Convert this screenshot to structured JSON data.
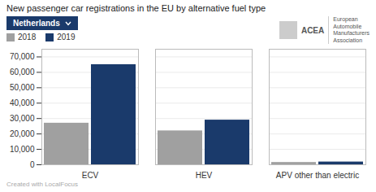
{
  "chart_data": {
    "type": "bar",
    "title": "New passenger car registrations in the EU by alternative fuel type",
    "categories": [
      "ECV",
      "HEV",
      "APV other than electric"
    ],
    "series": [
      {
        "name": "2018",
        "color": "#a0a0a0",
        "values": [
          27000,
          22000,
          1500
        ]
      },
      {
        "name": "2019",
        "color": "#1a3a6b",
        "values": [
          65000,
          29000,
          1800
        ]
      }
    ],
    "ylim": [
      0,
      75000
    ],
    "yticks": [
      0,
      {
        "value": 10000,
        "label": "10,000"
      },
      {
        "value": 20000,
        "label": "20,000"
      },
      {
        "value": 30000,
        "label": "30,000"
      },
      {
        "value": 40000,
        "label": "40,000"
      },
      {
        "value": 50000,
        "label": "50,000"
      },
      {
        "value": 60000,
        "label": "60,000"
      },
      {
        "value": 70000,
        "label": "70,000"
      }
    ],
    "grid": true,
    "legend": "upper left",
    "annotations": [
      "Netherlands",
      "ACEA",
      "European",
      "Automobile",
      "Manufacturers",
      "Association",
      "Created with LocalFocus"
    ]
  }
}
